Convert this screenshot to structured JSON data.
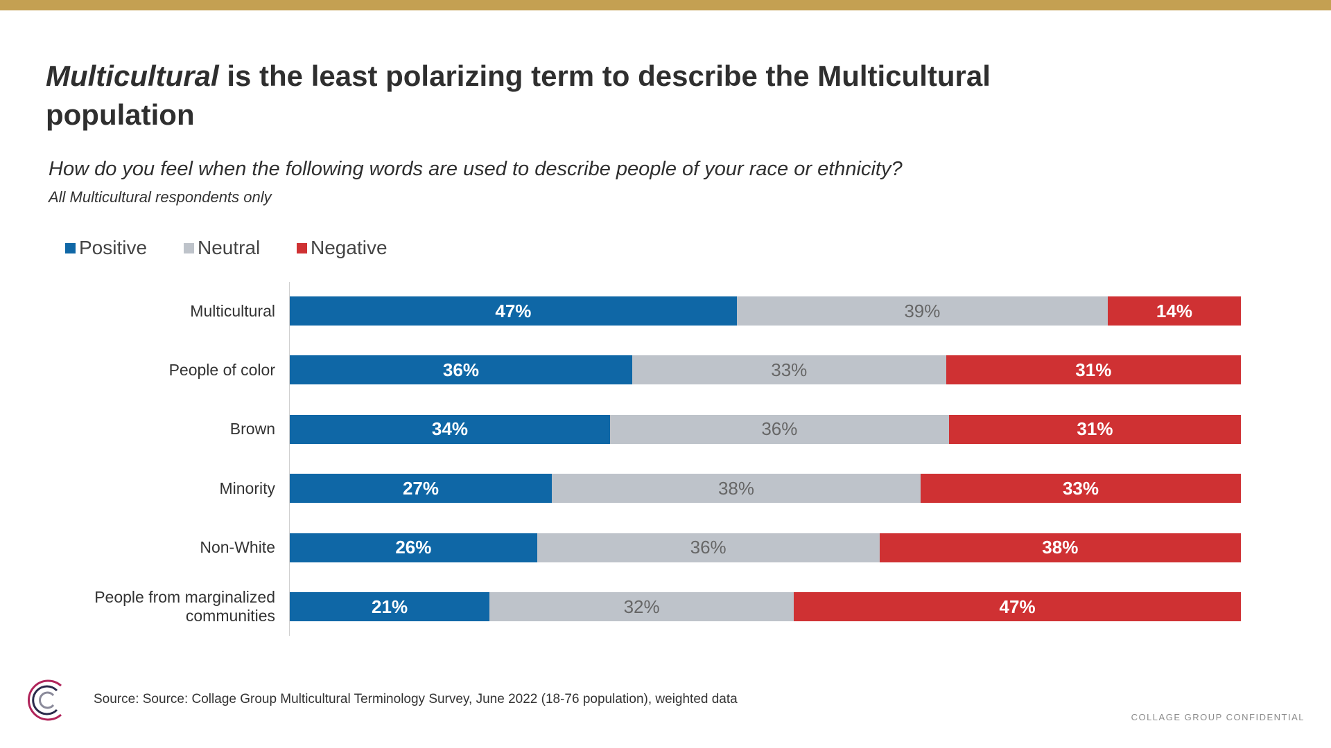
{
  "chart_data": {
    "type": "bar",
    "orientation": "horizontal",
    "stacked": true,
    "title_emphasis": "Multicultural",
    "title": " is the least polarizing term to describe the Multicultural population",
    "subtitle": "How do you feel when the following words are used to describe people of your race or ethnicity?",
    "note": "All Multicultural respondents only",
    "categories": [
      "Multicultural",
      "People of color",
      "Brown",
      "Minority",
      "Non-White",
      "People from marginalized communities"
    ],
    "series": [
      {
        "name": "Positive",
        "color": "#0f67a6",
        "values": [
          47,
          36,
          34,
          27,
          26,
          21
        ],
        "value_labels": [
          "47%",
          "36%",
          "34%",
          "27%",
          "26%",
          "21%"
        ]
      },
      {
        "name": "Neutral",
        "color": "#bec3ca",
        "values": [
          39,
          33,
          36,
          38,
          36,
          32
        ],
        "value_labels": [
          "39%",
          "33%",
          "36%",
          "38%",
          "36%",
          "32%"
        ]
      },
      {
        "name": "Negative",
        "color": "#cf3133",
        "values": [
          14,
          31,
          31,
          33,
          38,
          47
        ],
        "value_labels": [
          "14%",
          "31%",
          "31%",
          "33%",
          "38%",
          "47%"
        ]
      }
    ],
    "legend_position": "top-left",
    "source": "Source: Source: Collage Group Multicultural Terminology Survey, June 2022 (18-76 population), weighted data",
    "footer": "COLLAGE GROUP CONFIDENTIAL"
  }
}
